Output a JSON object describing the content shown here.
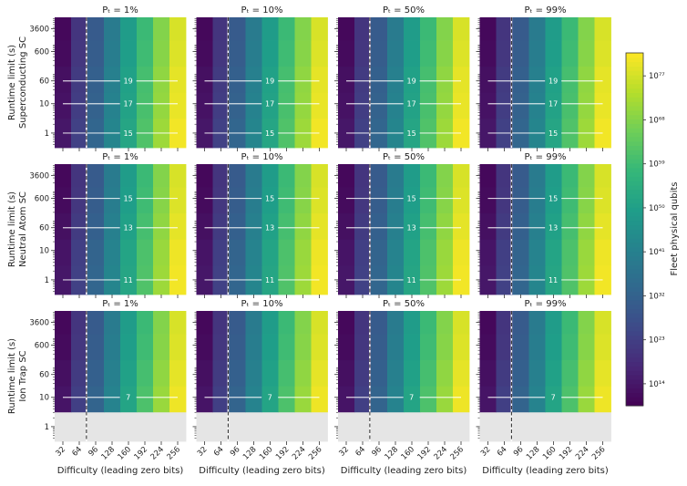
{
  "chart_data": {
    "type": "heatmap",
    "xlabel": "Difficulty (leading zero bits)",
    "ylabel": "Runtime limit (s)",
    "x_categories": [
      32,
      64,
      96,
      128,
      160,
      192,
      224,
      256
    ],
    "x_tick_labels": [
      "32",
      "64",
      "96",
      "128",
      "160",
      "192",
      "224",
      "256"
    ],
    "y_categories": [
      1,
      10,
      60,
      600,
      3600
    ],
    "y_tick_labels": [
      "1",
      "10",
      "60",
      "600",
      "3600"
    ],
    "y_scale": "log",
    "panel_titles": [
      "Pₜ = 1%",
      "Pₜ = 10%",
      "Pₜ = 50%",
      "Pₜ = 99%"
    ],
    "vertical_dashed_line_x": 78,
    "missing_color": "#e5e5e5",
    "colorbar": {
      "label": "Fleet physical qubits",
      "colormap": "viridis",
      "scale": "log",
      "range_log10": [
        9.5,
        81.7
      ],
      "ticks_log10": [
        14,
        23,
        32,
        41,
        50,
        59,
        68,
        77
      ],
      "tick_labels": [
        "10¹⁴",
        "10²³",
        "10³²",
        "10⁴¹",
        "10⁵⁰",
        "10⁵⁹",
        "10⁶⁸",
        "10⁷⁷"
      ]
    },
    "rows": [
      {
        "label": "Superconducting SC",
        "z_log10_rows_by_runtime": [
          [
            14,
            23.5,
            33,
            42.5,
            52,
            61.5,
            71,
            80.5
          ],
          [
            13,
            22.5,
            32,
            41.5,
            51,
            60.5,
            70,
            79.5
          ],
          [
            12.5,
            22,
            31.5,
            41,
            50.5,
            60,
            69.5,
            79
          ],
          [
            11.5,
            21,
            30.5,
            40,
            49.5,
            59,
            68.5,
            78
          ],
          [
            11,
            20.5,
            30,
            39.5,
            49,
            58.5,
            68,
            77.5
          ]
        ],
        "contours": [
          {
            "level": "19",
            "runtime": 60
          },
          {
            "level": "17",
            "runtime": 10
          },
          {
            "level": "15",
            "runtime": 1
          }
        ]
      },
      {
        "label": "Neutral Atom SC",
        "z_log10_rows_by_runtime": [
          [
            14,
            23.5,
            33,
            42.5,
            52,
            61.5,
            71,
            80.5
          ],
          [
            13.5,
            23,
            32.5,
            42,
            51.5,
            61,
            70.5,
            80
          ],
          [
            12.5,
            22,
            31.5,
            41,
            50.5,
            60,
            69.5,
            79
          ],
          [
            11.5,
            21,
            30.5,
            40,
            49.5,
            59,
            68.5,
            78
          ],
          [
            11,
            20.5,
            30,
            39.5,
            49,
            58.5,
            68,
            77.5
          ]
        ],
        "contours": [
          {
            "level": "15",
            "runtime": 600
          },
          {
            "level": "13",
            "runtime": 60
          },
          {
            "level": "11",
            "runtime": 1
          }
        ]
      },
      {
        "label": "Ion Trap SC",
        "z_log10_rows_by_runtime": [
          [
            null,
            null,
            null,
            null,
            null,
            null,
            null,
            null
          ],
          [
            13.5,
            23,
            32.5,
            42,
            51.5,
            61,
            70.5,
            80
          ],
          [
            12.5,
            22,
            31.5,
            41,
            50.5,
            60,
            69.5,
            79
          ],
          [
            11.5,
            21,
            30.5,
            40,
            49.5,
            59,
            68.5,
            78
          ],
          [
            11,
            20.5,
            30,
            39.5,
            49,
            58.5,
            68,
            77.5
          ]
        ],
        "contours": [
          {
            "level": "7",
            "runtime": 10
          }
        ]
      }
    ]
  }
}
